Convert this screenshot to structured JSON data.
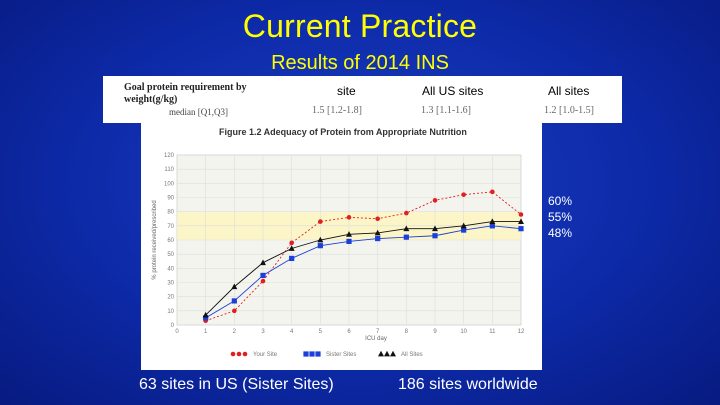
{
  "slide": {
    "title": "Current Practice",
    "subtitle": "Results of 2014 INS",
    "caption_left": "63 sites in US (Sister Sites)",
    "caption_right": "186 sites worldwide",
    "percentages": [
      "60%",
      "55%",
      "48%"
    ]
  },
  "table": {
    "row_label_line1": "Goal protein requirement by",
    "row_label_line2": "weight(g/kg)",
    "row_sublabel": "median [Q1,Q3]",
    "columns": [
      "site",
      "All US sites",
      "All sites"
    ],
    "values": [
      "1.5 [1.2-1.8]",
      "1.3 [1.1-1.6]",
      "1.2 [1.0-1.5]"
    ]
  },
  "colors": {
    "background": "#0d2aa8",
    "title": "#ffff00",
    "your_site": "#e02020",
    "sister_sites": "#1c3fd8",
    "all_sites": "#111111",
    "band": "#fbf5c8"
  },
  "chart_data": {
    "type": "line",
    "title": "Figure 1.2 Adequacy of Protein from Appropriate Nutrition",
    "xlabel": "ICU day",
    "ylabel": "% protein received/prescribed",
    "x": [
      1,
      2,
      3,
      4,
      5,
      6,
      7,
      8,
      9,
      10,
      11,
      12
    ],
    "xlim": [
      0,
      12
    ],
    "ylim": [
      0,
      120
    ],
    "yticks": [
      0,
      10,
      20,
      30,
      40,
      50,
      60,
      70,
      80,
      90,
      100,
      110,
      120
    ],
    "shaded_band": [
      60,
      80
    ],
    "grid": true,
    "legend_position": "bottom",
    "series": [
      {
        "name": "Your Site",
        "marker": "circle",
        "values": [
          3,
          10,
          31,
          58,
          73,
          76,
          75,
          79,
          88,
          92,
          94,
          78
        ]
      },
      {
        "name": "Sister Sites",
        "marker": "square",
        "values": [
          5,
          17,
          35,
          47,
          56,
          59,
          61,
          62,
          63,
          67,
          70,
          68
        ]
      },
      {
        "name": "All Sites",
        "marker": "triangle",
        "values": [
          7,
          27,
          44,
          54,
          60,
          64,
          65,
          68,
          68,
          70,
          73,
          73
        ]
      }
    ]
  }
}
